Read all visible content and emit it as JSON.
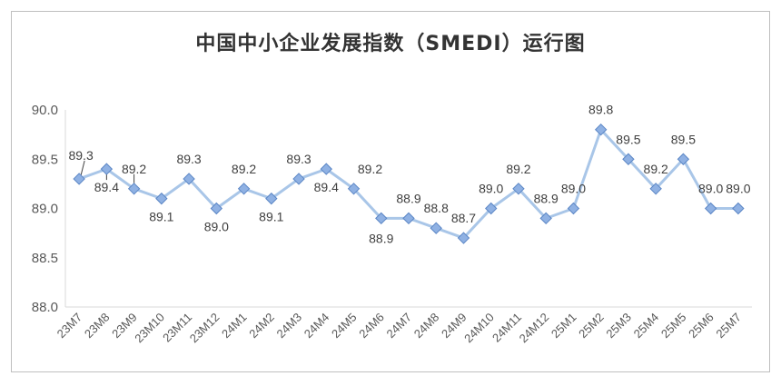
{
  "chart_data": {
    "type": "line",
    "title": "中国中小企业发展指数（SMEDI）运行图",
    "xlabel": "",
    "ylabel": "",
    "ylim": [
      88.0,
      90.0
    ],
    "yticks": [
      "88.0",
      "88.5",
      "89.0",
      "89.5",
      "90.0"
    ],
    "grid": false,
    "legend": "none",
    "line_color": "#a9c6e8",
    "marker_color": "#8fb1e3",
    "marker_edge": "#5b86c5",
    "categories": [
      "23M7",
      "23M8",
      "23M9",
      "23M10",
      "23M11",
      "23M12",
      "24M1",
      "24M2",
      "24M3",
      "24M4",
      "24M5",
      "24M6",
      "24M7",
      "24M8",
      "24M9",
      "24M10",
      "24M11",
      "24M12",
      "25M1",
      "25M2",
      "25M3",
      "25M4",
      "25M5",
      "25M6",
      "25M7"
    ],
    "values": [
      89.3,
      89.4,
      89.2,
      89.1,
      89.3,
      89.0,
      89.2,
      89.1,
      89.3,
      89.4,
      89.2,
      88.9,
      88.9,
      88.8,
      88.7,
      89.0,
      89.2,
      88.9,
      89.0,
      89.8,
      89.5,
      89.2,
      89.5,
      89.0,
      89.0
    ],
    "labels": [
      "89.3",
      "89.4",
      "89.2",
      "89.1",
      "89.3",
      "89.0",
      "89.2",
      "89.1",
      "89.3",
      "89.4",
      "89.2",
      "88.9",
      "88.9",
      "88.8",
      "88.7",
      "89.0",
      "89.2",
      "88.9",
      "89.0",
      "89.8",
      "89.5",
      "89.2",
      "89.5",
      "89.0",
      "89.0"
    ]
  }
}
